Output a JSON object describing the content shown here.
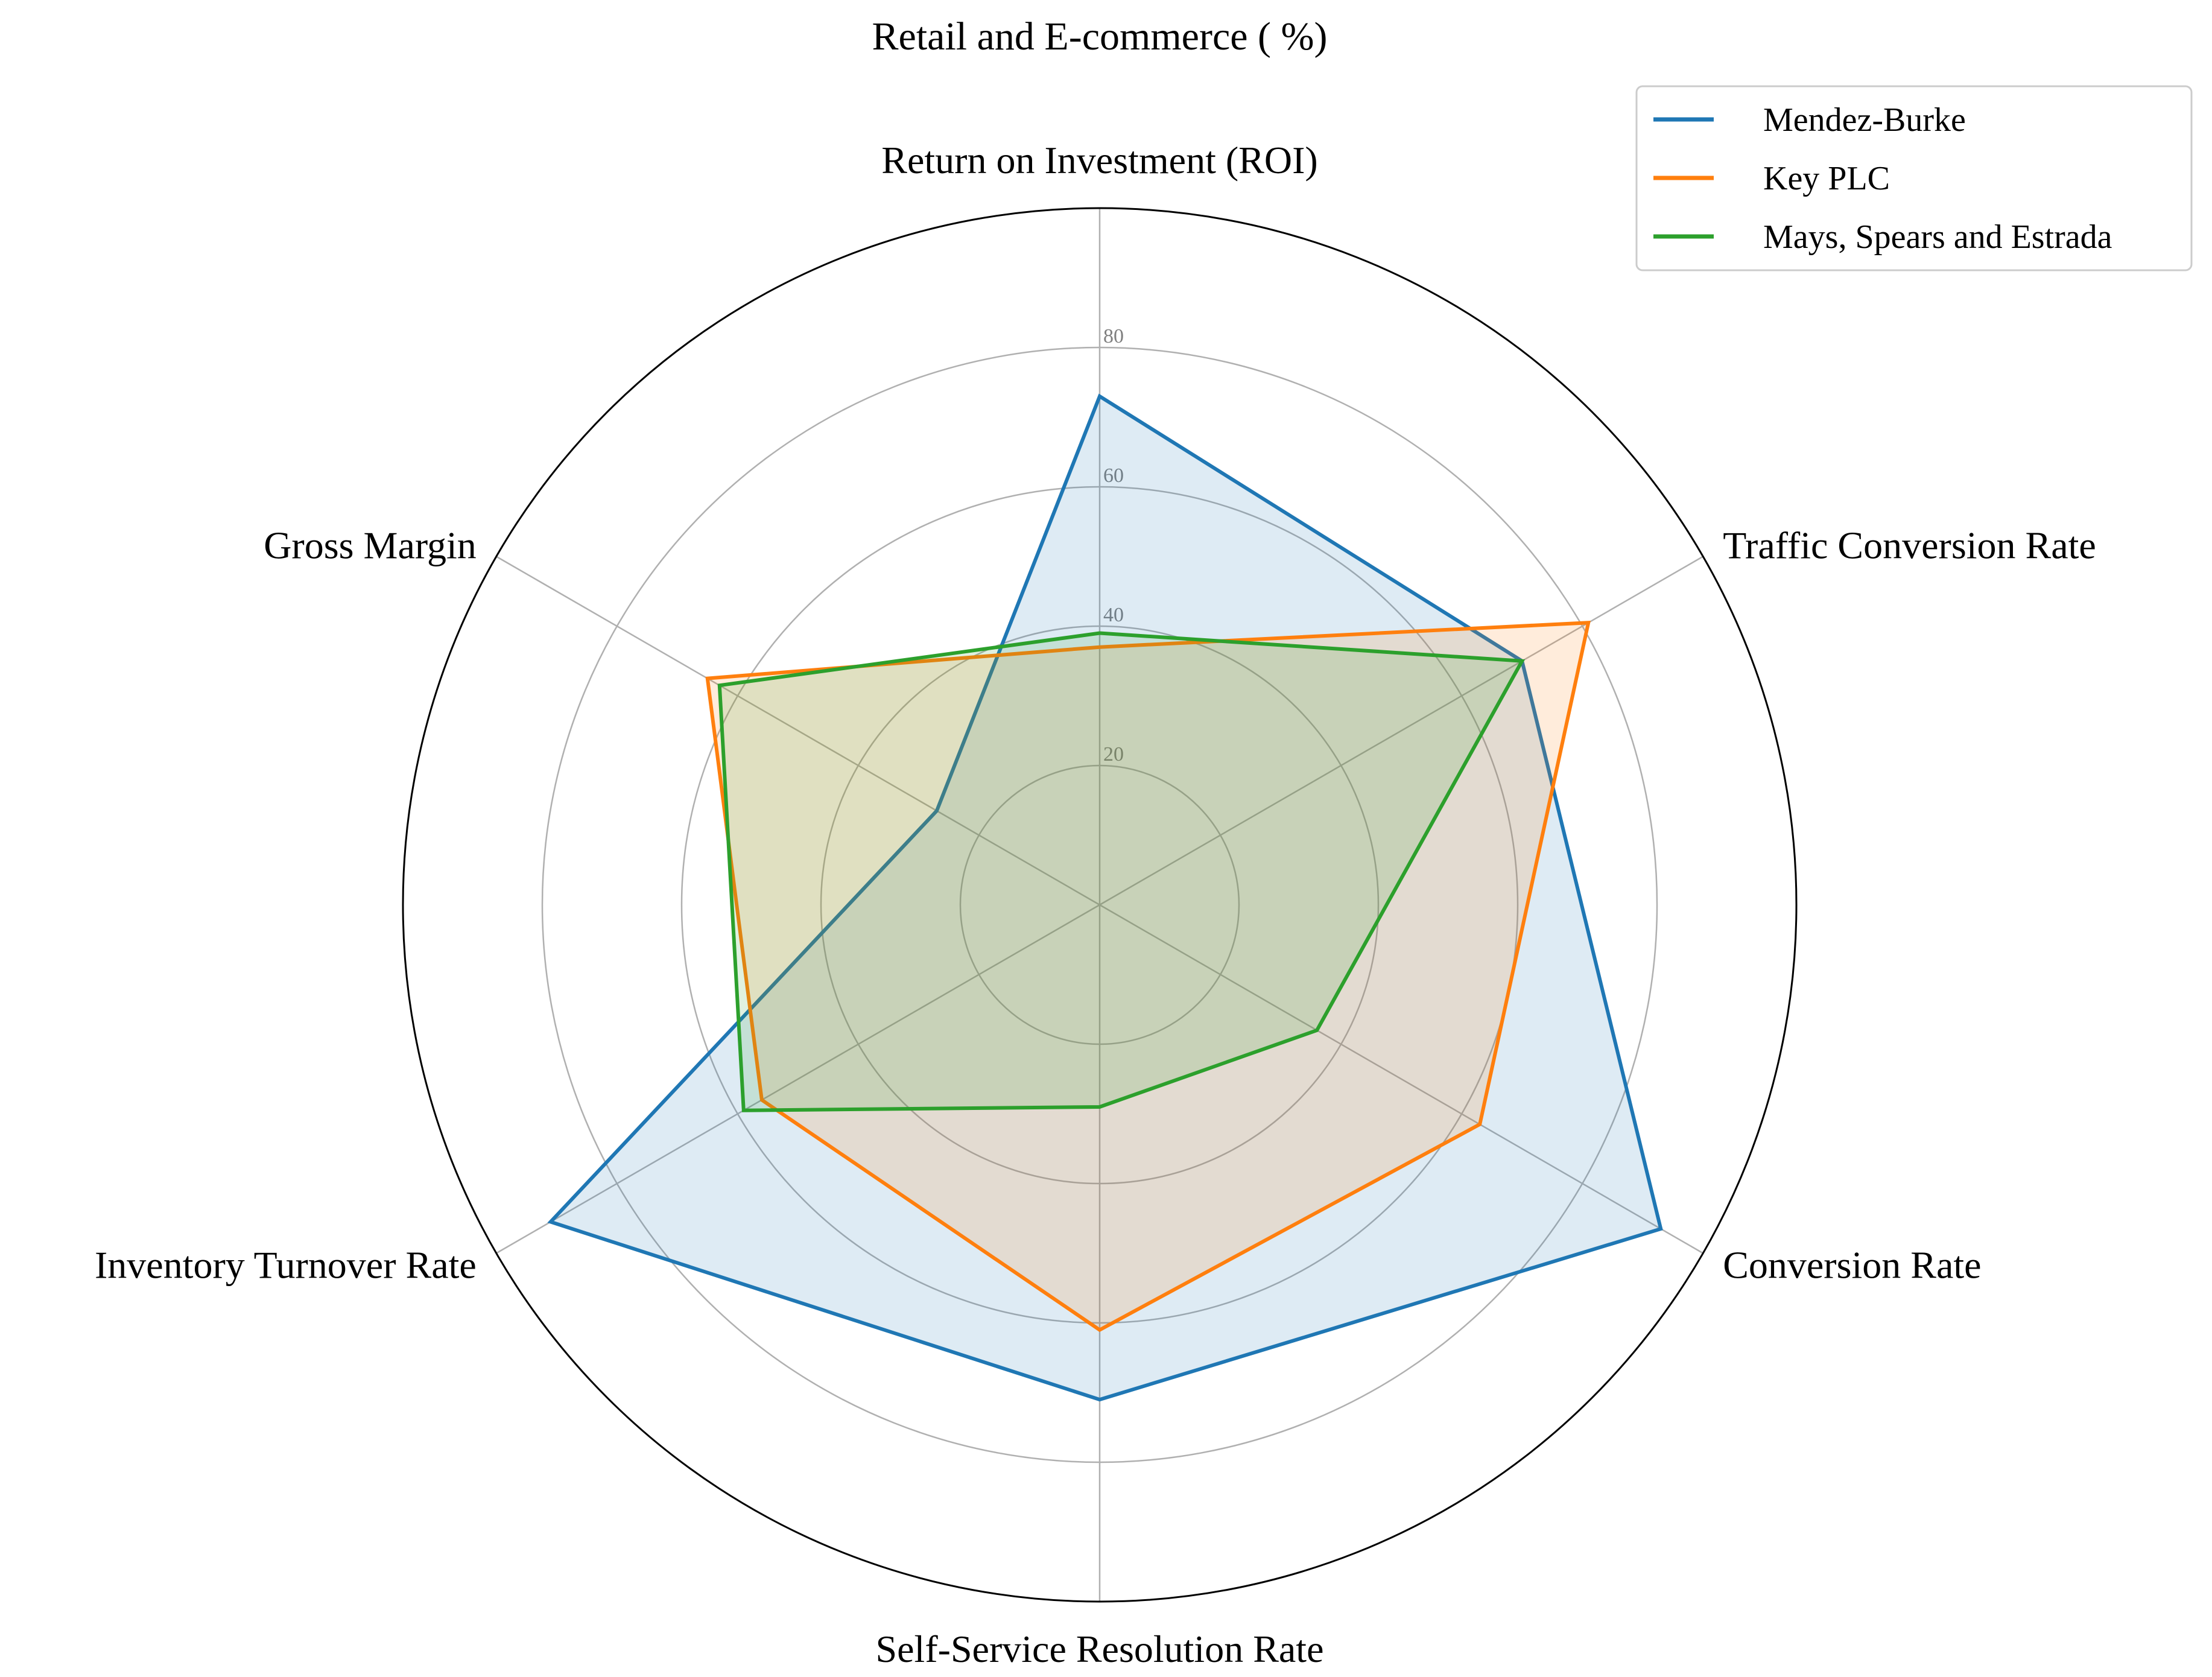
{
  "chart_data": {
    "type": "radar",
    "title": "Retail and E-commerce ( %)",
    "categories": [
      "Return on Investment (ROI)",
      "Traffic Conversion Rate",
      "Conversion Rate",
      "Self-Service Resolution Rate",
      "Inventory Turnover Rate",
      "Gross Margin"
    ],
    "rmax": 100,
    "rticks": [
      20,
      40,
      60,
      80
    ],
    "grid": true,
    "legend_position": "top-right",
    "series": [
      {
        "name": "Mendez-Burke",
        "color": "#1f77b4",
        "values": [
          73,
          70,
          93,
          71,
          91,
          27
        ]
      },
      {
        "name": "Key PLC",
        "color": "#ff7f0e",
        "values": [
          37,
          81,
          63,
          61,
          56,
          65
        ]
      },
      {
        "name": "Mays, Spears and Estrada",
        "color": "#2ca02c",
        "values": [
          39,
          70,
          36,
          29,
          59,
          63
        ]
      }
    ]
  }
}
